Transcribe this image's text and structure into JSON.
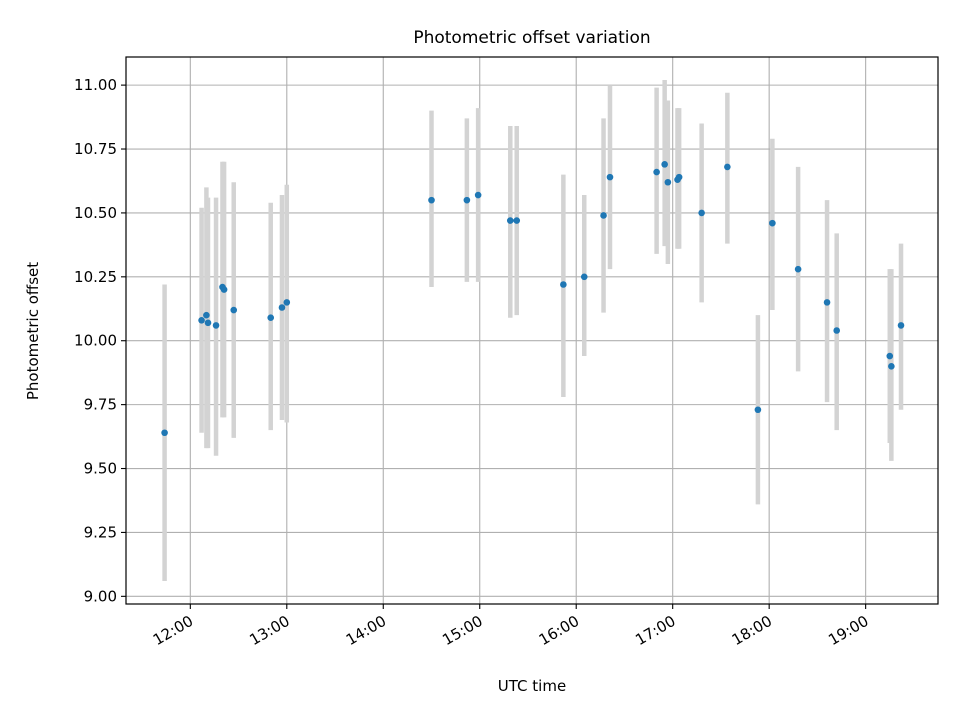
{
  "chart_data": {
    "type": "scatter",
    "title": "Photometric offset variation",
    "xlabel": "UTC time",
    "ylabel": "Photometric offset",
    "xlim": [
      "11:20",
      "19:45"
    ],
    "ylim": [
      8.97,
      11.11
    ],
    "grid": true,
    "x_ticks": [
      "12:00",
      "13:00",
      "14:00",
      "15:00",
      "16:00",
      "17:00",
      "18:00",
      "19:00"
    ],
    "y_ticks": [
      "9.00",
      "9.25",
      "9.50",
      "9.75",
      "10.00",
      "10.25",
      "10.50",
      "10.75",
      "11.00"
    ],
    "marker_color": "#1f77b4",
    "errorbar_color": "#d3d3d3",
    "points": [
      {
        "time": "11:44",
        "value": 9.64,
        "low": 9.06,
        "high": 10.22
      },
      {
        "time": "12:07",
        "value": 10.08,
        "low": 9.64,
        "high": 10.52
      },
      {
        "time": "12:10",
        "value": 10.1,
        "low": 9.58,
        "high": 10.6
      },
      {
        "time": "12:11",
        "value": 10.07,
        "low": 9.58,
        "high": 10.56
      },
      {
        "time": "12:16",
        "value": 10.06,
        "low": 9.55,
        "high": 10.56
      },
      {
        "time": "12:20",
        "value": 10.21,
        "low": 9.7,
        "high": 10.7
      },
      {
        "time": "12:21",
        "value": 10.2,
        "low": 9.7,
        "high": 10.7
      },
      {
        "time": "12:27",
        "value": 10.12,
        "low": 9.62,
        "high": 10.62
      },
      {
        "time": "12:50",
        "value": 10.09,
        "low": 9.65,
        "high": 10.54
      },
      {
        "time": "12:57",
        "value": 10.13,
        "low": 9.69,
        "high": 10.57
      },
      {
        "time": "13:00",
        "value": 10.15,
        "low": 9.68,
        "high": 10.61
      },
      {
        "time": "14:30",
        "value": 10.55,
        "low": 10.21,
        "high": 10.9
      },
      {
        "time": "14:52",
        "value": 10.55,
        "low": 10.23,
        "high": 10.87
      },
      {
        "time": "14:59",
        "value": 10.57,
        "low": 10.23,
        "high": 10.91
      },
      {
        "time": "15:19",
        "value": 10.47,
        "low": 10.09,
        "high": 10.84
      },
      {
        "time": "15:23",
        "value": 10.47,
        "low": 10.1,
        "high": 10.84
      },
      {
        "time": "15:52",
        "value": 10.22,
        "low": 9.78,
        "high": 10.65
      },
      {
        "time": "16:05",
        "value": 10.25,
        "low": 9.94,
        "high": 10.57
      },
      {
        "time": "16:17",
        "value": 10.49,
        "low": 10.11,
        "high": 10.87
      },
      {
        "time": "16:21",
        "value": 10.64,
        "low": 10.28,
        "high": 11.0
      },
      {
        "time": "16:50",
        "value": 10.66,
        "low": 10.34,
        "high": 10.99
      },
      {
        "time": "16:55",
        "value": 10.69,
        "low": 10.37,
        "high": 11.02
      },
      {
        "time": "16:57",
        "value": 10.62,
        "low": 10.3,
        "high": 10.94
      },
      {
        "time": "17:03",
        "value": 10.63,
        "low": 10.36,
        "high": 10.91
      },
      {
        "time": "17:04",
        "value": 10.64,
        "low": 10.36,
        "high": 10.91
      },
      {
        "time": "17:18",
        "value": 10.5,
        "low": 10.15,
        "high": 10.85
      },
      {
        "time": "17:34",
        "value": 10.68,
        "low": 10.38,
        "high": 10.97
      },
      {
        "time": "17:53",
        "value": 9.73,
        "low": 9.36,
        "high": 10.1
      },
      {
        "time": "18:02",
        "value": 10.46,
        "low": 10.12,
        "high": 10.79
      },
      {
        "time": "18:18",
        "value": 10.28,
        "low": 9.88,
        "high": 10.68
      },
      {
        "time": "18:36",
        "value": 10.15,
        "low": 9.76,
        "high": 10.55
      },
      {
        "time": "18:42",
        "value": 10.04,
        "low": 9.65,
        "high": 10.42
      },
      {
        "time": "19:15",
        "value": 9.94,
        "low": 9.6,
        "high": 10.28
      },
      {
        "time": "19:16",
        "value": 9.9,
        "low": 9.53,
        "high": 10.28
      },
      {
        "time": "19:22",
        "value": 10.06,
        "low": 9.73,
        "high": 10.38
      }
    ]
  }
}
